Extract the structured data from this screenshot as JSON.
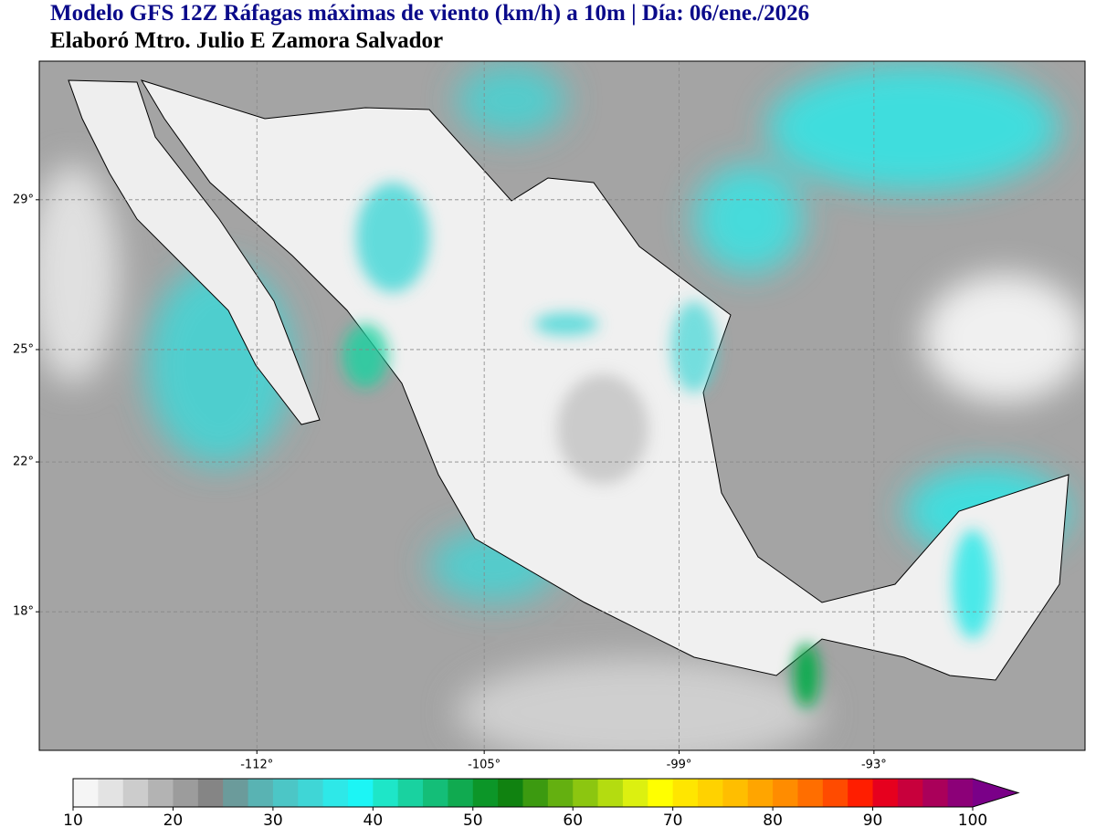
{
  "header": {
    "title": "Modelo GFS 12Z Ráfagas máximas de viento (km/h) a 10m | Día: 06/ene./2026",
    "subtitle": "Elaboró Mtro. Julio E Zamora Salvador"
  },
  "map": {
    "lonlim": [
      -118.7,
      -86.5
    ],
    "latlim": [
      14.3,
      32.7
    ],
    "lon_ticks": [
      {
        "value": -112,
        "label": "-112°"
      },
      {
        "value": -105,
        "label": "-105°"
      },
      {
        "value": -99,
        "label": "-99°"
      },
      {
        "value": -93,
        "label": "-93°"
      }
    ],
    "lat_ticks": [
      {
        "value": 29,
        "label": "29°"
      },
      {
        "value": 25,
        "label": "25°"
      },
      {
        "value": 22,
        "label": "22°"
      },
      {
        "value": 18,
        "label": "18°"
      }
    ],
    "grid": true
  },
  "colorbar": {
    "ticks": [
      10,
      20,
      30,
      40,
      50,
      60,
      70,
      80,
      90,
      100
    ],
    "colors": [
      "#f5f5f5",
      "#e3e3e3",
      "#cccccc",
      "#b3b3b3",
      "#9c9c9c",
      "#858585",
      "#6b9b9b",
      "#59b3b3",
      "#4cc6c6",
      "#3fd6d6",
      "#2ee8e8",
      "#1cf5f5",
      "#1ee6c8",
      "#19d2a0",
      "#14be78",
      "#10aa50",
      "#0c9628",
      "#108210",
      "#3c9a10",
      "#64b010",
      "#8cc610",
      "#b4dc10",
      "#dcf010",
      "#ffff00",
      "#ffe600",
      "#ffd200",
      "#ffbe00",
      "#ffa500",
      "#ff8c00",
      "#ff6e00",
      "#ff4b00",
      "#ff1e00",
      "#e6001e",
      "#c8003c",
      "#aa005a",
      "#8c0078",
      "#7a0088"
    ]
  }
}
